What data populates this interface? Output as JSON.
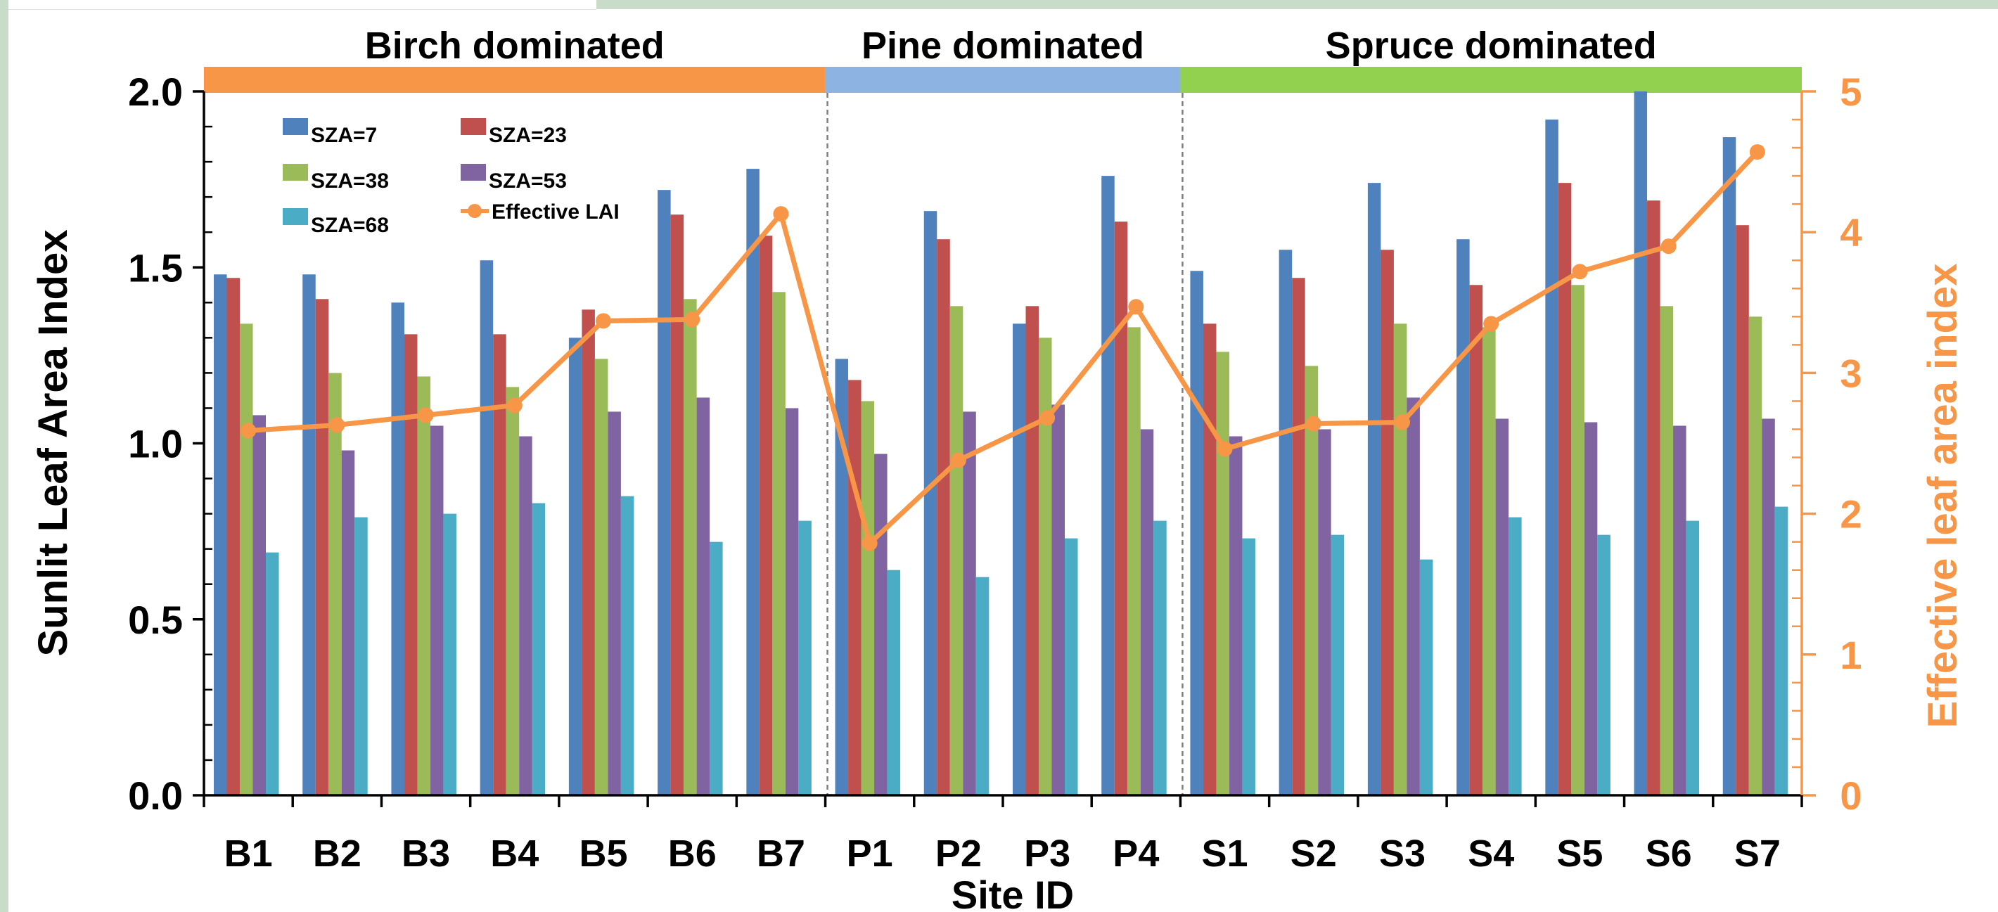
{
  "chart_data": {
    "type": "bar",
    "xlabel": "Site ID",
    "ylabel": "Sunlit Leaf Area Index",
    "y2label": "Effective leaf area index",
    "ylim": [
      0,
      2.0
    ],
    "y2lim": [
      0,
      5
    ],
    "yticks": [
      "0.0",
      "0.5",
      "1.0",
      "1.5",
      "2.0"
    ],
    "y2ticks": [
      "0",
      "1",
      "2",
      "3",
      "4",
      "5"
    ],
    "categories": [
      "B1",
      "B2",
      "B3",
      "B4",
      "B5",
      "B6",
      "B7",
      "P1",
      "P2",
      "P3",
      "P4",
      "S1",
      "S2",
      "S3",
      "S4",
      "S5",
      "S6",
      "S7"
    ],
    "groups": [
      {
        "label": "Birch dominated",
        "start": 0,
        "end": 6,
        "color": "#f79646"
      },
      {
        "label": "Pine dominated",
        "start": 7,
        "end": 10,
        "color": "#8db3e2"
      },
      {
        "label": "Spruce dominated",
        "start": 11,
        "end": 17,
        "color": "#92d050"
      }
    ],
    "series": [
      {
        "name": "SZA=7",
        "color": "#4f81bd",
        "values": [
          1.48,
          1.48,
          1.4,
          1.52,
          1.3,
          1.72,
          1.78,
          1.24,
          1.66,
          1.34,
          1.76,
          1.49,
          1.55,
          1.74,
          1.58,
          1.92,
          2.0,
          1.87
        ]
      },
      {
        "name": "SZA=23",
        "color": "#c0504d",
        "values": [
          1.47,
          1.41,
          1.31,
          1.31,
          1.38,
          1.65,
          1.59,
          1.18,
          1.58,
          1.39,
          1.63,
          1.34,
          1.47,
          1.55,
          1.45,
          1.74,
          1.69,
          1.62
        ]
      },
      {
        "name": "SZA=38",
        "color": "#9bbb59",
        "values": [
          1.34,
          1.2,
          1.19,
          1.16,
          1.24,
          1.41,
          1.43,
          1.12,
          1.39,
          1.3,
          1.33,
          1.26,
          1.22,
          1.34,
          1.33,
          1.45,
          1.39,
          1.36
        ]
      },
      {
        "name": "SZA=53",
        "color": "#8064a2",
        "values": [
          1.08,
          0.98,
          1.05,
          1.02,
          1.09,
          1.13,
          1.1,
          0.97,
          1.09,
          1.11,
          1.04,
          1.02,
          1.04,
          1.13,
          1.07,
          1.06,
          1.05,
          1.07
        ]
      },
      {
        "name": "SZA=68",
        "color": "#4bacc6",
        "values": [
          0.69,
          0.79,
          0.8,
          0.83,
          0.85,
          0.72,
          0.78,
          0.64,
          0.62,
          0.73,
          0.78,
          0.73,
          0.74,
          0.67,
          0.79,
          0.74,
          0.78,
          0.82
        ]
      }
    ],
    "line_series": {
      "name": "Effective LAI",
      "color": "#f79646",
      "axis": "right",
      "values": [
        2.59,
        2.63,
        2.7,
        2.77,
        3.37,
        3.38,
        4.13,
        1.79,
        2.38,
        2.68,
        3.47,
        2.46,
        2.64,
        2.65,
        3.35,
        3.72,
        3.9,
        4.57
      ]
    },
    "legend_position": "top-left, inside plot",
    "grid": false
  }
}
